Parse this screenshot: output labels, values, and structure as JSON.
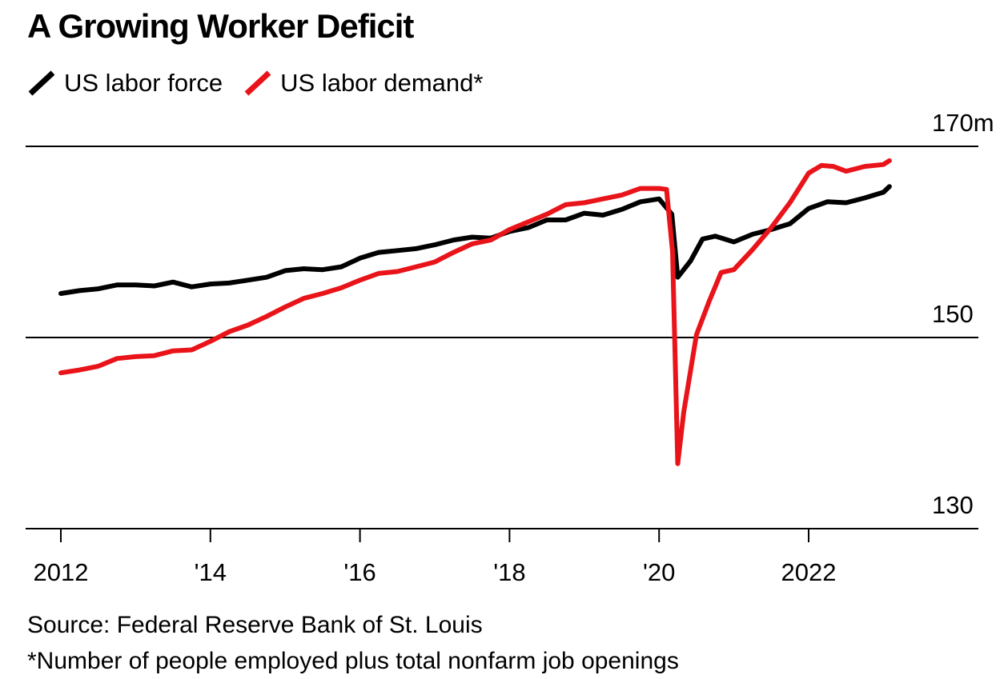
{
  "title": "A Growing Worker Deficit",
  "legend": [
    {
      "label": "US labor force",
      "color": "#000000"
    },
    {
      "label": "US labor demand*",
      "color": "#e8141a"
    }
  ],
  "footer": {
    "source": "Source: Federal Reserve Bank of St. Louis",
    "note": "*Number of people employed plus total nonfarm job openings"
  },
  "chart_data": {
    "type": "line",
    "title": "A Growing Worker Deficit",
    "xlabel": "",
    "ylabel": "",
    "xlim": [
      2012,
      2024.5
    ],
    "ylim": [
      130,
      170
    ],
    "yticks": [
      {
        "value": 170,
        "label": "170m"
      },
      {
        "value": 150,
        "label": "150"
      },
      {
        "value": 130,
        "label": "130"
      }
    ],
    "xticks": [
      {
        "value": 2012,
        "label": "2012"
      },
      {
        "value": 2014,
        "label": "'14"
      },
      {
        "value": 2016,
        "label": "'16"
      },
      {
        "value": 2018,
        "label": "'18"
      },
      {
        "value": 2020,
        "label": "'20"
      },
      {
        "value": 2022,
        "label": "2022"
      }
    ],
    "grid": "horizontal at y ticks",
    "legend_position": "top-left",
    "series": [
      {
        "name": "US labor force",
        "color": "#000000",
        "points": [
          [
            2012.0,
            154.6
          ],
          [
            2012.25,
            154.9
          ],
          [
            2012.5,
            155.1
          ],
          [
            2012.75,
            155.5
          ],
          [
            2013.0,
            155.5
          ],
          [
            2013.25,
            155.4
          ],
          [
            2013.5,
            155.8
          ],
          [
            2013.75,
            155.3
          ],
          [
            2014.0,
            155.6
          ],
          [
            2014.25,
            155.7
          ],
          [
            2014.5,
            156.0
          ],
          [
            2014.75,
            156.3
          ],
          [
            2015.0,
            157.0
          ],
          [
            2015.25,
            157.2
          ],
          [
            2015.5,
            157.1
          ],
          [
            2015.75,
            157.4
          ],
          [
            2016.0,
            158.3
          ],
          [
            2016.25,
            158.9
          ],
          [
            2016.5,
            159.1
          ],
          [
            2016.75,
            159.3
          ],
          [
            2017.0,
            159.7
          ],
          [
            2017.25,
            160.2
          ],
          [
            2017.5,
            160.5
          ],
          [
            2017.75,
            160.4
          ],
          [
            2018.0,
            161.1
          ],
          [
            2018.25,
            161.5
          ],
          [
            2018.5,
            162.3
          ],
          [
            2018.75,
            162.3
          ],
          [
            2019.0,
            163.0
          ],
          [
            2019.25,
            162.8
          ],
          [
            2019.5,
            163.4
          ],
          [
            2019.75,
            164.2
          ],
          [
            2020.0,
            164.5
          ],
          [
            2020.17,
            162.9
          ],
          [
            2020.25,
            156.3
          ],
          [
            2020.42,
            158.0
          ],
          [
            2020.58,
            160.3
          ],
          [
            2020.75,
            160.6
          ],
          [
            2021.0,
            160.0
          ],
          [
            2021.25,
            160.8
          ],
          [
            2021.5,
            161.3
          ],
          [
            2021.75,
            161.9
          ],
          [
            2022.0,
            163.5
          ],
          [
            2022.25,
            164.2
          ],
          [
            2022.5,
            164.1
          ],
          [
            2022.75,
            164.6
          ],
          [
            2023.0,
            165.2
          ],
          [
            2023.08,
            165.8
          ]
        ]
      },
      {
        "name": "US labor demand*",
        "color": "#e8141a",
        "points": [
          [
            2012.0,
            146.3
          ],
          [
            2012.25,
            146.6
          ],
          [
            2012.5,
            147.0
          ],
          [
            2012.75,
            147.8
          ],
          [
            2013.0,
            148.0
          ],
          [
            2013.25,
            148.1
          ],
          [
            2013.5,
            148.6
          ],
          [
            2013.75,
            148.7
          ],
          [
            2014.0,
            149.6
          ],
          [
            2014.25,
            150.6
          ],
          [
            2014.5,
            151.3
          ],
          [
            2014.75,
            152.2
          ],
          [
            2015.0,
            153.2
          ],
          [
            2015.25,
            154.1
          ],
          [
            2015.5,
            154.6
          ],
          [
            2015.75,
            155.2
          ],
          [
            2016.0,
            156.0
          ],
          [
            2016.25,
            156.7
          ],
          [
            2016.5,
            156.9
          ],
          [
            2016.75,
            157.4
          ],
          [
            2017.0,
            157.9
          ],
          [
            2017.25,
            158.9
          ],
          [
            2017.5,
            159.8
          ],
          [
            2017.75,
            160.2
          ],
          [
            2018.0,
            161.3
          ],
          [
            2018.25,
            162.1
          ],
          [
            2018.5,
            162.9
          ],
          [
            2018.75,
            163.9
          ],
          [
            2019.0,
            164.1
          ],
          [
            2019.25,
            164.5
          ],
          [
            2019.5,
            164.9
          ],
          [
            2019.75,
            165.6
          ],
          [
            2020.0,
            165.6
          ],
          [
            2020.1,
            165.5
          ],
          [
            2020.18,
            159.0
          ],
          [
            2020.25,
            136.8
          ],
          [
            2020.33,
            142.2
          ],
          [
            2020.5,
            150.3
          ],
          [
            2020.67,
            153.8
          ],
          [
            2020.83,
            156.8
          ],
          [
            2021.0,
            157.1
          ],
          [
            2021.25,
            159.2
          ],
          [
            2021.5,
            161.5
          ],
          [
            2021.75,
            164.1
          ],
          [
            2022.0,
            167.2
          ],
          [
            2022.17,
            168.0
          ],
          [
            2022.33,
            167.9
          ],
          [
            2022.5,
            167.4
          ],
          [
            2022.75,
            167.9
          ],
          [
            2023.0,
            168.1
          ],
          [
            2023.08,
            168.5
          ]
        ]
      }
    ]
  }
}
